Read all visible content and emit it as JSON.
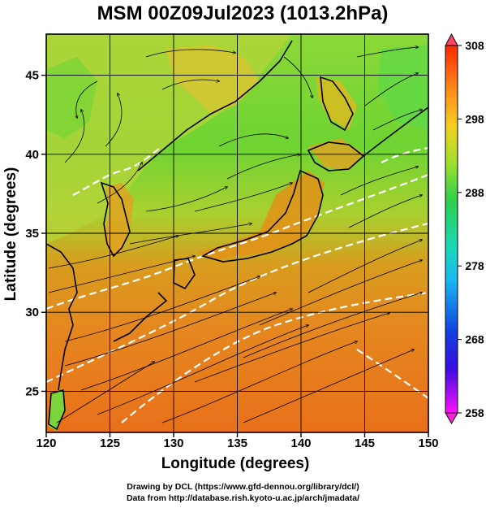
{
  "title": "MSM 00Z09Jul2023 (1013.2hPa)",
  "x_axis": {
    "title": "Longitude (degrees)",
    "ticks": [
      120,
      125,
      130,
      135,
      140,
      145,
      150
    ],
    "range": [
      120,
      150
    ]
  },
  "y_axis": {
    "title": "Latitude  (degrees)",
    "ticks": [
      25,
      30,
      35,
      40,
      45
    ],
    "range": [
      22.4,
      47.6
    ]
  },
  "colorbar": {
    "labels": [
      "308",
      "298",
      "288",
      "278",
      "268",
      "258"
    ],
    "values": [
      308,
      298,
      288,
      278,
      268,
      258
    ],
    "range": [
      258,
      308
    ],
    "colors": [
      "#ff00ff",
      "#0000ff",
      "#00ffff",
      "#00ff00",
      "#ffff00",
      "#ff8800",
      "#ff0000"
    ]
  },
  "credits": {
    "line1": "Drawing by DCL (https://www.gfd-dennou.org/library/dcl/)",
    "line2": "Data from http://database.rish.kyoto-u.ac.jp/arch/jmadata/"
  },
  "map_colors": {
    "land_warm": "#e6b020",
    "sea_warm": "#e8701a",
    "sea_green": "#66d433",
    "contour": "#ffffff",
    "coast": "#000000"
  }
}
